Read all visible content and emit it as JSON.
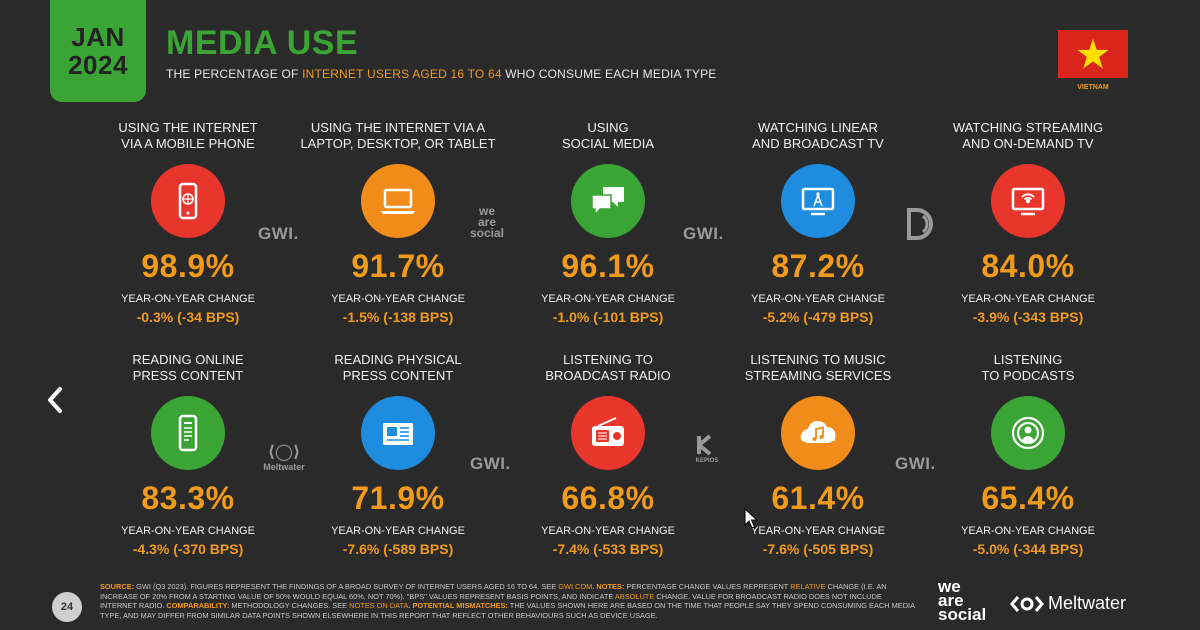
{
  "header": {
    "date_line1": "JAN",
    "date_line2": "2024",
    "title": "MEDIA USE",
    "subtitle_pre": "THE PERCENTAGE OF ",
    "subtitle_highlight": "INTERNET USERS AGED 16 TO 64",
    "subtitle_post": " WHO CONSUME EACH MEDIA TYPE",
    "country": "VIETNAM"
  },
  "yoy_label": "YEAR-ON-YEAR CHANGE",
  "metrics": [
    {
      "label1": "USING THE INTERNET",
      "label2": "VIA A MOBILE PHONE",
      "value": "98.9%",
      "change": "-0.3% (-34 BPS)",
      "icon": "mobile-phone-icon",
      "color": "#e8362c"
    },
    {
      "label1": "USING THE INTERNET VIA A",
      "label2": "LAPTOP, DESKTOP, OR TABLET",
      "value": "91.7%",
      "change": "-1.5% (-138 BPS)",
      "icon": "laptop-icon",
      "color": "#f28c1a"
    },
    {
      "label1": "USING",
      "label2": "SOCIAL MEDIA",
      "value": "96.1%",
      "change": "-1.0% (-101 BPS)",
      "icon": "chat-bubbles-icon",
      "color": "#3aa435"
    },
    {
      "label1": "WATCHING LINEAR",
      "label2": "AND BROADCAST TV",
      "value": "87.2%",
      "change": "-5.2% (-479 BPS)",
      "icon": "broadcast-tv-icon",
      "color": "#1e8de0"
    },
    {
      "label1": "WATCHING STREAMING",
      "label2": "AND ON-DEMAND TV",
      "value": "84.0%",
      "change": "-3.9% (-343 BPS)",
      "icon": "streaming-tv-icon",
      "color": "#e8362c"
    },
    {
      "label1": "READING ONLINE",
      "label2": "PRESS CONTENT",
      "value": "83.3%",
      "change": "-4.3% (-370 BPS)",
      "icon": "mobile-article-icon",
      "color": "#3aa435"
    },
    {
      "label1": "READING PHYSICAL",
      "label2": "PRESS CONTENT",
      "value": "71.9%",
      "change": "-7.6% (-589 BPS)",
      "icon": "newspaper-icon",
      "color": "#1e8de0"
    },
    {
      "label1": "LISTENING TO",
      "label2": "BROADCAST RADIO",
      "value": "66.8%",
      "change": "-7.4% (-533 BPS)",
      "icon": "radio-icon",
      "color": "#e8362c"
    },
    {
      "label1": "LISTENING TO MUSIC",
      "label2": "STREAMING SERVICES",
      "value": "61.4%",
      "change": "-7.6% (-505 BPS)",
      "icon": "cloud-music-icon",
      "color": "#f28c1a"
    },
    {
      "label1": "LISTENING",
      "label2": "TO PODCASTS",
      "value": "65.4%",
      "change": "-5.0% (-344 BPS)",
      "icon": "podcast-icon",
      "color": "#3aa435"
    }
  ],
  "watermarks": {
    "gwi": "GWI.",
    "was1": "we",
    "was2": "are",
    "was3": "social",
    "meltwater": "Meltwater",
    "kepios": "KEPIOS"
  },
  "footer": {
    "source_label": "SOURCE:",
    "source_text": " GWI (Q3 2023). FIGURES REPRESENT THE FINDINGS OF A BROAD SURVEY OF INTERNET USERS AGED 16 TO 64. SEE ",
    "source_link": "GWI.COM",
    "notes_label": ". NOTES:",
    "notes_text1": " PERCENTAGE CHANGE VALUES REPRESENT ",
    "relative": "RELATIVE",
    "notes_text2": " CHANGE (I.E. AN INCREASE OF 20% FROM A STARTING VALUE OF 50% WOULD EQUAL 60%, NOT 70%). \"BPS\" VALUES REPRESENT BASIS POINTS, AND INDICATE ",
    "absolute": "ABSOLUTE",
    "notes_text3": " CHANGE. VALUE FOR BROADCAST RADIO DOES NOT INCLUDE INTERNET RADIO. ",
    "comparability_label": "COMPARABILITY:",
    "comparability_text": " METHODOLOGY CHANGES. SEE ",
    "notes_on_data": "NOTES ON DATA",
    "mismatch_label": ". POTENTIAL MISMATCHES:",
    "mismatch_text": " THE VALUES SHOWN HERE ARE BASED ON THE TIME THAT PEOPLE SAY THEY SPEND CONSUMING EACH MEDIA TYPE, AND MAY DIFFER FROM SIMILAR DATA POINTS SHOWN ELSEWHERE IN THIS REPORT THAT REFLECT OTHER BEHAVIOURS SUCH AS DEVICE USAGE."
  },
  "page_number": "24",
  "brand": {
    "was1": "we",
    "was2": "are",
    "was3": "social",
    "meltwater": "Meltwater"
  }
}
